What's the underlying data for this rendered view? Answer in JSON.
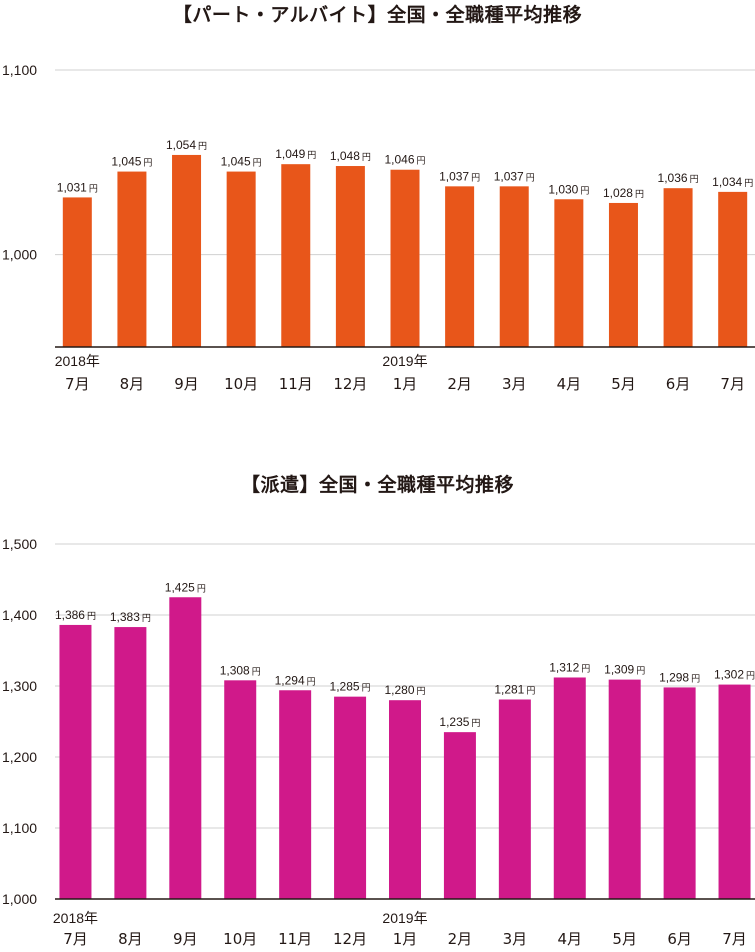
{
  "charts": [
    {
      "title": "【パート・アルバイト】全国・全職種平均推移",
      "color": "#E8561A",
      "chart_data": {
        "type": "bar",
        "title": "【パート・アルバイト】全国・全職種平均推移",
        "categories": [
          "7月",
          "8月",
          "9月",
          "10月",
          "11月",
          "12月",
          "1月",
          "2月",
          "3月",
          "4月",
          "5月",
          "6月",
          "7月"
        ],
        "year_labels": [
          {
            "index": 0,
            "text": "2018年"
          },
          {
            "index": 6,
            "text": "2019年"
          }
        ],
        "values": [
          1031,
          1045,
          1054,
          1045,
          1049,
          1048,
          1046,
          1037,
          1037,
          1030,
          1028,
          1036,
          1034
        ],
        "value_unit": "円",
        "ylim": [
          950,
          1100
        ],
        "yticks": [
          1000,
          1100
        ],
        "ytick_labels": [
          "1,000",
          "1,100"
        ],
        "grid": true,
        "xlabel": "",
        "ylabel": ""
      }
    },
    {
      "title": "【派遣】全国・全職種平均推移",
      "color": "#D0198A",
      "chart_data": {
        "type": "bar",
        "title": "【派遣】全国・全職種平均推移",
        "categories": [
          "7月",
          "8月",
          "9月",
          "10月",
          "11月",
          "12月",
          "1月",
          "2月",
          "3月",
          "4月",
          "5月",
          "6月",
          "7月"
        ],
        "year_labels": [
          {
            "index": 0,
            "text": "2018年"
          },
          {
            "index": 6,
            "text": "2019年"
          }
        ],
        "values": [
          1386,
          1383,
          1425,
          1308,
          1294,
          1285,
          1280,
          1235,
          1281,
          1312,
          1309,
          1298,
          1302
        ],
        "value_unit": "円",
        "ylim": [
          1000,
          1500
        ],
        "yticks": [
          1000,
          1100,
          1200,
          1300,
          1400,
          1500
        ],
        "ytick_labels": [
          "1,000",
          "1,100",
          "1,200",
          "1,300",
          "1,400",
          "1,500"
        ],
        "grid": true,
        "xlabel": "",
        "ylabel": ""
      }
    }
  ]
}
